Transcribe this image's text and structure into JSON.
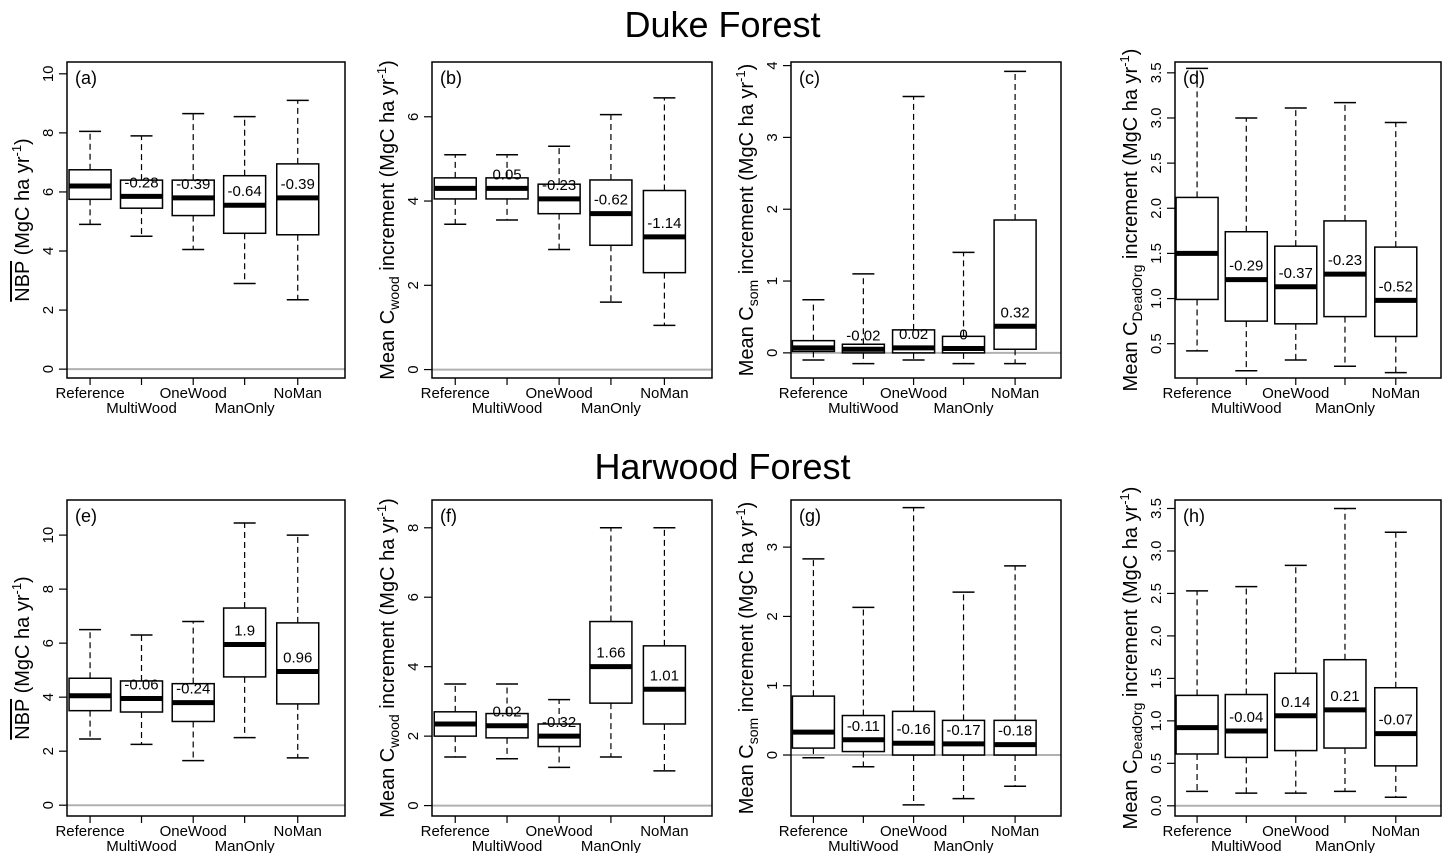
{
  "rows": [
    {
      "title": "Duke Forest"
    },
    {
      "title": "Harwood Forest"
    }
  ],
  "chart_data": [
    {
      "type": "box",
      "panel": "(a)",
      "ylabel_main": "NBP",
      "ylabel_unit": " (MgC ha yr",
      "ylabel_sup": "-1",
      "ylabel_close": ")",
      "ylabel_overline": true,
      "ylim": [
        -0.3,
        10.4
      ],
      "yticks": [
        "0",
        "2",
        "4",
        "6",
        "8",
        "10"
      ],
      "ytick_values": [
        0,
        2,
        4,
        6,
        8,
        10
      ],
      "categories": [
        "Reference",
        "MultiWood",
        "OneWood",
        "ManOnly",
        "NoMan"
      ],
      "boxes": [
        {
          "whisker_low": 4.9,
          "q1": 5.75,
          "median": 6.2,
          "q3": 6.75,
          "whisker_high": 8.05,
          "label": ""
        },
        {
          "whisker_low": 4.5,
          "q1": 5.45,
          "median": 5.85,
          "q3": 6.4,
          "whisker_high": 7.9,
          "label": "-0.28"
        },
        {
          "whisker_low": 4.05,
          "q1": 5.2,
          "median": 5.8,
          "q3": 6.4,
          "whisker_high": 8.65,
          "label": "-0.39"
        },
        {
          "whisker_low": 2.9,
          "q1": 4.6,
          "median": 5.55,
          "q3": 6.55,
          "whisker_high": 8.55,
          "label": "-0.64"
        },
        {
          "whisker_low": 2.35,
          "q1": 4.55,
          "median": 5.8,
          "q3": 6.95,
          "whisker_high": 9.1,
          "label": "-0.39"
        }
      ]
    },
    {
      "type": "box",
      "panel": "(b)",
      "ylabel_main": "Mean C",
      "ylabel_sub": "wood",
      "ylabel_unit": " increment (MgC ha yr",
      "ylabel_sup": "-1",
      "ylabel_close": ")",
      "ylim": [
        -0.2,
        7.3
      ],
      "yticks": [
        "0",
        "2",
        "4",
        "6"
      ],
      "ytick_values": [
        0,
        2,
        4,
        6
      ],
      "categories": [
        "Reference",
        "MultiWood",
        "OneWood",
        "ManOnly",
        "NoMan"
      ],
      "boxes": [
        {
          "whisker_low": 3.45,
          "q1": 4.05,
          "median": 4.3,
          "q3": 4.55,
          "whisker_high": 5.1,
          "label": ""
        },
        {
          "whisker_low": 3.55,
          "q1": 4.05,
          "median": 4.3,
          "q3": 4.55,
          "whisker_high": 5.1,
          "label": "0.05"
        },
        {
          "whisker_low": 2.85,
          "q1": 3.7,
          "median": 4.05,
          "q3": 4.4,
          "whisker_high": 5.3,
          "label": "-0.23"
        },
        {
          "whisker_low": 1.6,
          "q1": 2.95,
          "median": 3.7,
          "q3": 4.5,
          "whisker_high": 6.05,
          "label": "-0.62"
        },
        {
          "whisker_low": 1.05,
          "q1": 2.3,
          "median": 3.15,
          "q3": 4.25,
          "whisker_high": 6.45,
          "label": "-1.14"
        }
      ]
    },
    {
      "type": "box",
      "panel": "(c)",
      "ylabel_main": "Mean C",
      "ylabel_sub": "som",
      "ylabel_unit": " increment (MgC ha yr",
      "ylabel_sup": "-1",
      "ylabel_close": ")",
      "ylim": [
        -0.35,
        4.05
      ],
      "yticks": [
        "0",
        "1",
        "2",
        "3",
        "4"
      ],
      "ytick_values": [
        0,
        1,
        2,
        3,
        4
      ],
      "categories": [
        "Reference",
        "MultiWood",
        "OneWood",
        "ManOnly",
        "NoMan"
      ],
      "boxes": [
        {
          "whisker_low": -0.1,
          "q1": 0.02,
          "median": 0.07,
          "q3": 0.17,
          "whisker_high": 0.74,
          "label": ""
        },
        {
          "whisker_low": -0.15,
          "q1": 0.0,
          "median": 0.05,
          "q3": 0.12,
          "whisker_high": 1.1,
          "label": "-0.02"
        },
        {
          "whisker_low": -0.1,
          "q1": 0.0,
          "median": 0.07,
          "q3": 0.32,
          "whisker_high": 3.57,
          "label": "0.02"
        },
        {
          "whisker_low": -0.15,
          "q1": 0.0,
          "median": 0.06,
          "q3": 0.23,
          "whisker_high": 1.4,
          "label": "0"
        },
        {
          "whisker_low": -0.15,
          "q1": 0.05,
          "median": 0.37,
          "q3": 1.85,
          "whisker_high": 3.92,
          "label": "0.32"
        }
      ]
    },
    {
      "type": "box",
      "panel": "(d)",
      "ylabel_main": "Mean C",
      "ylabel_sub": "DeadOrg",
      "ylabel_unit": " increment (MgC ha yr",
      "ylabel_sup": "-1",
      "ylabel_close": ")",
      "ylim": [
        0.12,
        3.62
      ],
      "yticks": [
        "0.5",
        "1.0",
        "1.5",
        "2.0",
        "2.5",
        "3.0",
        "3.5"
      ],
      "ytick_values": [
        0.5,
        1.0,
        1.5,
        2.0,
        2.5,
        3.0,
        3.5
      ],
      "categories": [
        "Reference",
        "MultiWood",
        "OneWood",
        "ManOnly",
        "NoMan"
      ],
      "boxes": [
        {
          "whisker_low": 0.42,
          "q1": 0.99,
          "median": 1.5,
          "q3": 2.12,
          "whisker_high": 3.55,
          "label": ""
        },
        {
          "whisker_low": 0.2,
          "q1": 0.75,
          "median": 1.21,
          "q3": 1.74,
          "whisker_high": 3.0,
          "label": "-0.29"
        },
        {
          "whisker_low": 0.32,
          "q1": 0.72,
          "median": 1.13,
          "q3": 1.58,
          "whisker_high": 3.11,
          "label": "-0.37"
        },
        {
          "whisker_low": 0.25,
          "q1": 0.8,
          "median": 1.27,
          "q3": 1.86,
          "whisker_high": 3.17,
          "label": "-0.23"
        },
        {
          "whisker_low": 0.18,
          "q1": 0.58,
          "median": 0.98,
          "q3": 1.57,
          "whisker_high": 2.95,
          "label": "-0.52"
        }
      ]
    },
    {
      "type": "box",
      "panel": "(e)",
      "ylabel_main": "NBP",
      "ylabel_unit": " (MgC ha yr",
      "ylabel_sup": "-1",
      "ylabel_close": ")",
      "ylabel_overline": true,
      "ylim": [
        -0.4,
        11.3
      ],
      "yticks": [
        "0",
        "2",
        "4",
        "6",
        "8",
        "10"
      ],
      "ytick_values": [
        0,
        2,
        4,
        6,
        8,
        10
      ],
      "categories": [
        "Reference",
        "MultiWood",
        "OneWood",
        "ManOnly",
        "NoMan"
      ],
      "boxes": [
        {
          "whisker_low": 2.45,
          "q1": 3.5,
          "median": 4.05,
          "q3": 4.7,
          "whisker_high": 6.5,
          "label": ""
        },
        {
          "whisker_low": 2.25,
          "q1": 3.45,
          "median": 3.95,
          "q3": 4.6,
          "whisker_high": 6.3,
          "label": "-0.06"
        },
        {
          "whisker_low": 1.65,
          "q1": 3.1,
          "median": 3.8,
          "q3": 4.5,
          "whisker_high": 6.8,
          "label": "-0.24"
        },
        {
          "whisker_low": 2.5,
          "q1": 4.75,
          "median": 5.95,
          "q3": 7.3,
          "whisker_high": 10.45,
          "label": "1.9"
        },
        {
          "whisker_low": 1.75,
          "q1": 3.75,
          "median": 4.95,
          "q3": 6.75,
          "whisker_high": 10.0,
          "label": "0.96"
        }
      ]
    },
    {
      "type": "box",
      "panel": "(f)",
      "ylabel_main": "Mean C",
      "ylabel_sub": "wood",
      "ylabel_unit": " increment (MgC ha yr",
      "ylabel_sup": "-1",
      "ylabel_close": ")",
      "ylim": [
        -0.3,
        8.8
      ],
      "yticks": [
        "0",
        "2",
        "4",
        "6",
        "8"
      ],
      "ytick_values": [
        0,
        2,
        4,
        6,
        8
      ],
      "categories": [
        "Reference",
        "MultiWood",
        "OneWood",
        "ManOnly",
        "NoMan"
      ],
      "boxes": [
        {
          "whisker_low": 1.4,
          "q1": 2.0,
          "median": 2.35,
          "q3": 2.7,
          "whisker_high": 3.5,
          "label": ""
        },
        {
          "whisker_low": 1.35,
          "q1": 1.95,
          "median": 2.3,
          "q3": 2.65,
          "whisker_high": 3.5,
          "label": "0.02"
        },
        {
          "whisker_low": 1.1,
          "q1": 1.7,
          "median": 2.0,
          "q3": 2.35,
          "whisker_high": 3.05,
          "label": "-0.32"
        },
        {
          "whisker_low": 1.4,
          "q1": 2.95,
          "median": 4.0,
          "q3": 5.3,
          "whisker_high": 8.0,
          "label": "1.66"
        },
        {
          "whisker_low": 1.0,
          "q1": 2.35,
          "median": 3.35,
          "q3": 4.6,
          "whisker_high": 8.0,
          "label": "1.01"
        }
      ]
    },
    {
      "type": "box",
      "panel": "(g)",
      "ylabel_main": "Mean C",
      "ylabel_sub": "som",
      "ylabel_unit": " increment (MgC ha yr",
      "ylabel_sup": "-1",
      "ylabel_close": ")",
      "ylim": [
        -0.88,
        3.68
      ],
      "yticks": [
        "0",
        "1",
        "2",
        "3"
      ],
      "ytick_values": [
        0,
        1,
        2,
        3
      ],
      "categories": [
        "Reference",
        "MultiWood",
        "OneWood",
        "ManOnly",
        "NoMan"
      ],
      "boxes": [
        {
          "whisker_low": -0.04,
          "q1": 0.1,
          "median": 0.33,
          "q3": 0.85,
          "whisker_high": 2.83,
          "label": ""
        },
        {
          "whisker_low": -0.17,
          "q1": 0.05,
          "median": 0.22,
          "q3": 0.57,
          "whisker_high": 2.13,
          "label": "-0.11"
        },
        {
          "whisker_low": -0.72,
          "q1": 0.0,
          "median": 0.17,
          "q3": 0.63,
          "whisker_high": 3.57,
          "label": "-0.16"
        },
        {
          "whisker_low": -0.63,
          "q1": 0.0,
          "median": 0.16,
          "q3": 0.5,
          "whisker_high": 2.35,
          "label": "-0.17"
        },
        {
          "whisker_low": -0.45,
          "q1": 0.0,
          "median": 0.15,
          "q3": 0.5,
          "whisker_high": 2.73,
          "label": "-0.18"
        }
      ]
    },
    {
      "type": "box",
      "panel": "(h)",
      "ylabel_main": "Mean C",
      "ylabel_sub": "DeadOrg",
      "ylabel_unit": " increment (MgC ha yr",
      "ylabel_sup": "-1",
      "ylabel_close": ")",
      "ylim": [
        -0.12,
        3.6
      ],
      "yticks": [
        "0.0",
        "0.5",
        "1.0",
        "1.5",
        "2.0",
        "2.5",
        "3.0",
        "3.5"
      ],
      "ytick_values": [
        0,
        0.5,
        1.0,
        1.5,
        2.0,
        2.5,
        3.0,
        3.5
      ],
      "categories": [
        "Reference",
        "MultiWood",
        "OneWood",
        "ManOnly",
        "NoMan"
      ],
      "boxes": [
        {
          "whisker_low": 0.17,
          "q1": 0.61,
          "median": 0.92,
          "q3": 1.3,
          "whisker_high": 2.53,
          "label": ""
        },
        {
          "whisker_low": 0.15,
          "q1": 0.57,
          "median": 0.88,
          "q3": 1.31,
          "whisker_high": 2.58,
          "label": "-0.04"
        },
        {
          "whisker_low": 0.15,
          "q1": 0.65,
          "median": 1.06,
          "q3": 1.56,
          "whisker_high": 2.83,
          "label": "0.14"
        },
        {
          "whisker_low": 0.17,
          "q1": 0.68,
          "median": 1.13,
          "q3": 1.72,
          "whisker_high": 3.5,
          "label": "0.21"
        },
        {
          "whisker_low": 0.1,
          "q1": 0.47,
          "median": 0.85,
          "q3": 1.39,
          "whisker_high": 3.22,
          "label": "-0.07"
        }
      ]
    }
  ]
}
